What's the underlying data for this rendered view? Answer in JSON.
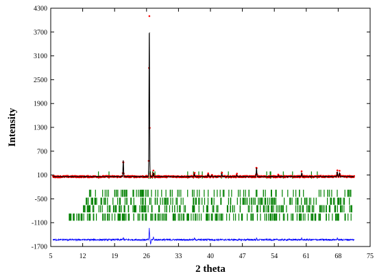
{
  "chart_data": {
    "type": "line",
    "title": "",
    "xlabel": "2 theta",
    "ylabel": "Intensity",
    "xlim": [
      5,
      75
    ],
    "ylim": [
      -1700,
      4300
    ],
    "x_ticks": [
      5,
      12,
      19,
      26,
      33,
      40,
      47,
      54,
      61,
      68,
      75
    ],
    "y_ticks": [
      -1700,
      -1100,
      -500,
      100,
      700,
      1300,
      1900,
      2500,
      3100,
      3700,
      4300
    ],
    "grid": false,
    "legend": "none",
    "series": [
      {
        "role": "observed",
        "color": "#ff0000",
        "marker": "point",
        "baseline": 60,
        "x_range": [
          5.5,
          71.5
        ],
        "peaks": [
          {
            "x": 20.9,
            "y": 500
          },
          {
            "x": 26.6,
            "y": 4300
          },
          {
            "x": 27.5,
            "y": 230
          },
          {
            "x": 36.5,
            "y": 160
          },
          {
            "x": 39.5,
            "y": 150
          },
          {
            "x": 40.3,
            "y": 110
          },
          {
            "x": 42.5,
            "y": 160
          },
          {
            "x": 45.8,
            "y": 120
          },
          {
            "x": 50.1,
            "y": 320
          },
          {
            "x": 54.9,
            "y": 110
          },
          {
            "x": 60.0,
            "y": 180
          },
          {
            "x": 64.1,
            "y": 90
          },
          {
            "x": 67.8,
            "y": 220
          },
          {
            "x": 68.3,
            "y": 200
          }
        ]
      },
      {
        "role": "calculated",
        "color": "#000000",
        "baseline": 60,
        "x_range": [
          5.5,
          71.5
        ],
        "peaks": [
          {
            "x": 20.9,
            "y": 470
          },
          {
            "x": 26.6,
            "y": 3850
          },
          {
            "x": 27.5,
            "y": 150
          },
          {
            "x": 36.5,
            "y": 130
          },
          {
            "x": 39.5,
            "y": 120
          },
          {
            "x": 40.3,
            "y": 90
          },
          {
            "x": 42.5,
            "y": 130
          },
          {
            "x": 45.8,
            "y": 100
          },
          {
            "x": 50.1,
            "y": 280
          },
          {
            "x": 54.9,
            "y": 90
          },
          {
            "x": 60.0,
            "y": 150
          },
          {
            "x": 64.1,
            "y": 70
          },
          {
            "x": 67.8,
            "y": 180
          },
          {
            "x": 68.3,
            "y": 160
          }
        ]
      },
      {
        "role": "difference",
        "color": "#0000ff",
        "baseline": -1530,
        "x_range": [
          5.5,
          71.5
        ],
        "features": [
          {
            "x": 20.9,
            "dy": 50
          },
          {
            "x": 26.6,
            "dy": 280
          },
          {
            "x": 26.9,
            "dy": -120
          },
          {
            "x": 27.5,
            "dy": 70
          },
          {
            "x": 36.5,
            "dy": 40
          },
          {
            "x": 39.5,
            "dy": 30
          },
          {
            "x": 50.1,
            "dy": 35
          },
          {
            "x": 60.0,
            "dy": 30
          },
          {
            "x": 67.8,
            "dy": 50
          }
        ]
      }
    ],
    "reflection_markers": {
      "color": "#008000",
      "rows": [
        {
          "y_center": 100,
          "x_range": [
            14.5,
            70.5
          ],
          "count": 20
        },
        {
          "y_center": -360,
          "x_range": [
            13.3,
            71.0
          ],
          "count": 95
        },
        {
          "y_center": -560,
          "x_range": [
            12.6,
            71.0
          ],
          "count": 130
        },
        {
          "y_center": -750,
          "x_range": [
            11.7,
            71.0
          ],
          "count": 150
        },
        {
          "y_center": -960,
          "x_range": [
            9.0,
            71.0
          ],
          "count": 175
        }
      ]
    }
  }
}
